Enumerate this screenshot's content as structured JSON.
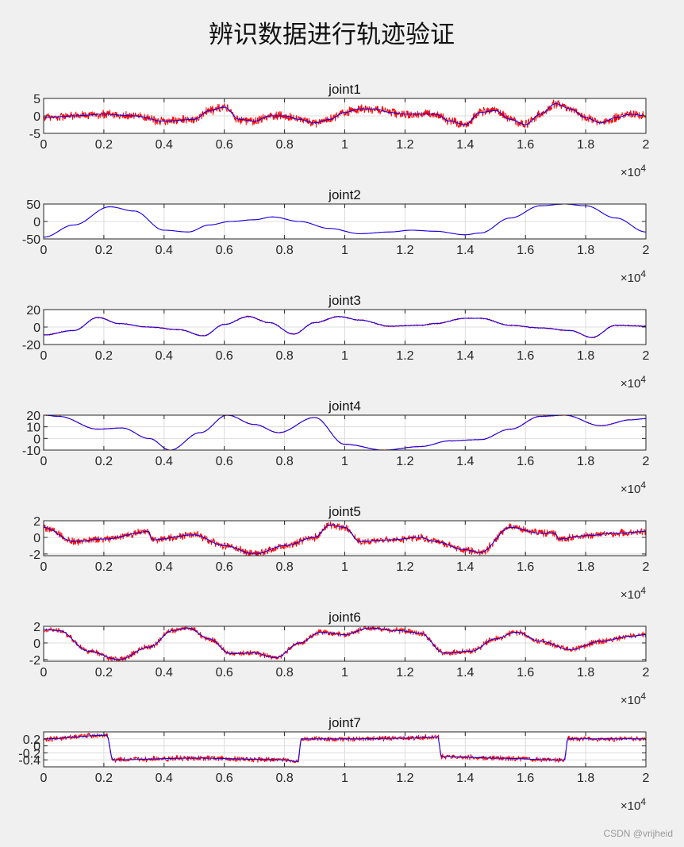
{
  "figure": {
    "title": "辨识数据进行轨迹验证",
    "watermark": "CSDN @vrijheid",
    "background": "#f0f0f0"
  },
  "chart_data": [
    {
      "type": "line",
      "title": "joint1",
      "xlim": [
        0,
        20000
      ],
      "ylim": [
        -5,
        5
      ],
      "xticks": [
        "0",
        "0.2",
        "0.4",
        "0.6",
        "0.8",
        "1",
        "1.2",
        "1.4",
        "1.6",
        "1.8",
        "2"
      ],
      "yticks": [
        "-5",
        "0",
        "5"
      ],
      "ytick_values": [
        -5,
        0,
        5
      ],
      "x_exponent": "×10^4",
      "grid": true,
      "series": [
        {
          "color": "#ff0000",
          "style": "noisy measurement",
          "noise": 2.0,
          "x": [
            0,
            1000,
            2000,
            3000,
            4000,
            5000,
            5500,
            6000,
            6500,
            7000,
            7500,
            8000,
            8500,
            9000,
            9500,
            10000,
            10500,
            11000,
            11500,
            12000,
            12500,
            13000,
            13500,
            14000,
            14500,
            15000,
            15500,
            16000,
            16500,
            17000,
            17500,
            18000,
            18500,
            19000,
            19500,
            20000
          ],
          "y": [
            -0.5,
            0,
            0.5,
            0,
            -1.5,
            -1,
            1.5,
            2.5,
            -1,
            -1.5,
            0,
            0,
            -1,
            -2,
            -1,
            1,
            2,
            2,
            1,
            0.5,
            0.5,
            0.5,
            -1.5,
            -2.5,
            1,
            1.5,
            -1,
            -2.5,
            0.5,
            3.5,
            2,
            -0.5,
            -2,
            -0.5,
            0.5,
            0
          ]
        },
        {
          "color": "#0000ff",
          "style": "line",
          "x": [
            0,
            1000,
            2000,
            3000,
            4000,
            5000,
            5500,
            6000,
            6500,
            7000,
            7500,
            8000,
            8500,
            9000,
            9500,
            10000,
            10500,
            11000,
            11500,
            12000,
            12500,
            13000,
            13500,
            14000,
            14500,
            15000,
            15500,
            16000,
            16500,
            17000,
            17500,
            18000,
            18500,
            19000,
            19500,
            20000
          ],
          "y": [
            -0.5,
            0,
            0.5,
            0,
            -1.5,
            -1,
            1.5,
            2.5,
            -1,
            -1.5,
            0,
            0,
            -1,
            -2,
            -1,
            1,
            2,
            2,
            1,
            0.5,
            0.5,
            0.5,
            -1.5,
            -2.5,
            1,
            1.5,
            -1,
            -2.5,
            0.5,
            3.5,
            2,
            -0.5,
            -2,
            -0.5,
            0.5,
            0
          ]
        }
      ]
    },
    {
      "type": "line",
      "title": "joint2",
      "xlim": [
        0,
        20000
      ],
      "ylim": [
        -50,
        50
      ],
      "xticks": [
        "0",
        "0.2",
        "0.4",
        "0.6",
        "0.8",
        "1",
        "1.2",
        "1.4",
        "1.6",
        "1.8",
        "2"
      ],
      "yticks": [
        "-50",
        "0",
        "50"
      ],
      "ytick_values": [
        -50,
        0,
        50
      ],
      "x_exponent": "×10^4",
      "grid": true,
      "series": [
        {
          "color": "#ff0000",
          "style": "noisy measurement",
          "noise": 0.6,
          "x": [
            0,
            1000,
            2200,
            3000,
            4000,
            4800,
            5500,
            6200,
            7000,
            7600,
            8500,
            9500,
            10500,
            11500,
            12200,
            13000,
            14000,
            14500,
            15500,
            16500,
            17300,
            18000,
            19000,
            20000
          ],
          "y": [
            -45,
            -10,
            42,
            30,
            -25,
            -30,
            -10,
            0,
            5,
            13,
            0,
            -20,
            -35,
            -30,
            -25,
            -28,
            -38,
            -33,
            10,
            45,
            50,
            45,
            10,
            -30
          ]
        },
        {
          "color": "#0000ff",
          "style": "line",
          "x": [
            0,
            1000,
            2200,
            3000,
            4000,
            4800,
            5500,
            6200,
            7000,
            7600,
            8500,
            9500,
            10500,
            11500,
            12200,
            13000,
            14000,
            14500,
            15500,
            16500,
            17300,
            18000,
            19000,
            20000
          ],
          "y": [
            -45,
            -10,
            42,
            30,
            -25,
            -30,
            -10,
            0,
            5,
            13,
            0,
            -20,
            -35,
            -30,
            -25,
            -28,
            -38,
            -33,
            10,
            45,
            50,
            45,
            10,
            -30
          ]
        }
      ]
    },
    {
      "type": "line",
      "title": "joint3",
      "xlim": [
        0,
        20000
      ],
      "ylim": [
        -20,
        20
      ],
      "xticks": [
        "0",
        "0.2",
        "0.4",
        "0.6",
        "0.8",
        "1",
        "1.2",
        "1.4",
        "1.6",
        "1.8",
        "2"
      ],
      "yticks": [
        "-20",
        "0",
        "20"
      ],
      "ytick_values": [
        -20,
        0,
        20
      ],
      "x_exponent": "×10^4",
      "grid": true,
      "series": [
        {
          "color": "#ff0000",
          "style": "noisy measurement",
          "noise": 1.2,
          "x": [
            0,
            1000,
            1800,
            2500,
            3500,
            4500,
            5300,
            6000,
            6800,
            7500,
            8300,
            9000,
            9800,
            10500,
            11500,
            12500,
            13000,
            14000,
            14500,
            15500,
            16500,
            17500,
            18200,
            19000,
            20000
          ],
          "y": [
            -9,
            -4,
            11,
            4,
            0,
            -3,
            -10,
            3,
            12,
            5,
            -8,
            5,
            12,
            8,
            1,
            2,
            4,
            10,
            10,
            2,
            -1,
            -4,
            -12,
            2,
            1
          ]
        },
        {
          "color": "#0000ff",
          "style": "line",
          "x": [
            0,
            1000,
            1800,
            2500,
            3500,
            4500,
            5300,
            6000,
            6800,
            7500,
            8300,
            9000,
            9800,
            10500,
            11500,
            12500,
            13000,
            14000,
            14500,
            15500,
            16500,
            17500,
            18200,
            19000,
            20000
          ],
          "y": [
            -9,
            -4,
            11,
            4,
            0,
            -3,
            -10,
            3,
            12,
            5,
            -8,
            5,
            12,
            8,
            1,
            2,
            4,
            10,
            10,
            2,
            -1,
            -4,
            -12,
            2,
            1
          ]
        }
      ]
    },
    {
      "type": "line",
      "title": "joint4",
      "xlim": [
        0,
        20000
      ],
      "ylim": [
        -10,
        20
      ],
      "xticks": [
        "0",
        "0.2",
        "0.4",
        "0.6",
        "0.8",
        "1",
        "1.2",
        "1.4",
        "1.6",
        "1.8",
        "2"
      ],
      "yticks": [
        "-10",
        "0",
        "10",
        "20"
      ],
      "ytick_values": [
        -10,
        0,
        10,
        20
      ],
      "x_exponent": "×10^4",
      "grid": true,
      "series": [
        {
          "color": "#ff0000",
          "style": "noisy measurement",
          "noise": 0.6,
          "x": [
            0,
            500,
            1800,
            2600,
            3500,
            4200,
            5200,
            6100,
            7000,
            7800,
            9000,
            10000,
            11300,
            12500,
            13500,
            14500,
            15500,
            16500,
            17300,
            18500,
            19500,
            20000
          ],
          "y": [
            20,
            19,
            8,
            9,
            0,
            -10,
            5,
            20,
            12,
            5,
            18,
            -5,
            -10,
            -7,
            -2,
            -1,
            8,
            19,
            20,
            11,
            16,
            17
          ]
        },
        {
          "color": "#0000ff",
          "style": "line",
          "x": [
            0,
            500,
            1800,
            2600,
            3500,
            4200,
            5200,
            6100,
            7000,
            7800,
            9000,
            10000,
            11300,
            12500,
            13500,
            14500,
            15500,
            16500,
            17300,
            18500,
            19500,
            20000
          ],
          "y": [
            20,
            19,
            8,
            9,
            0,
            -10,
            5,
            20,
            12,
            5,
            18,
            -5,
            -10,
            -7,
            -2,
            -1,
            8,
            19,
            20,
            11,
            16,
            17
          ]
        }
      ]
    },
    {
      "type": "line",
      "title": "joint5",
      "xlim": [
        0,
        20000
      ],
      "ylim": [
        -2.2,
        2
      ],
      "xticks": [
        "0",
        "0.2",
        "0.4",
        "0.6",
        "0.8",
        "1",
        "1.2",
        "1.4",
        "1.6",
        "1.8",
        "2"
      ],
      "yticks": [
        "-2",
        "0",
        "2"
      ],
      "ytick_values": [
        -2,
        0,
        2
      ],
      "x_exponent": "×10^4",
      "grid": true,
      "series": [
        {
          "color": "#ff0000",
          "style": "noisy measurement",
          "noise": 0.7,
          "x": [
            0,
            1000,
            2000,
            3500,
            3600,
            5000,
            6000,
            7000,
            8000,
            9000,
            9500,
            10000,
            10500,
            11500,
            12500,
            13000,
            14000,
            14500,
            15500,
            16500,
            17000,
            17100,
            18000,
            19000,
            20000
          ],
          "y": [
            1.2,
            -0.5,
            -0.2,
            0.7,
            -0.3,
            0.3,
            -1,
            -2,
            -1,
            0,
            1.5,
            1.2,
            -0.5,
            -0.3,
            0,
            -0.5,
            -1.5,
            -1.8,
            1.2,
            0.5,
            0.5,
            -0.2,
            0.2,
            0.5,
            0.7
          ]
        },
        {
          "color": "#0000ff",
          "style": "line",
          "x": [
            0,
            1000,
            2000,
            3500,
            3600,
            5000,
            6000,
            7000,
            8000,
            9000,
            9500,
            10000,
            10500,
            11500,
            12500,
            13000,
            14000,
            14500,
            15500,
            16500,
            17000,
            17100,
            18000,
            19000,
            20000
          ],
          "y": [
            1.2,
            -0.5,
            -0.2,
            0.7,
            -0.3,
            0.3,
            -1,
            -2,
            -1,
            0,
            1.5,
            1.2,
            -0.5,
            -0.3,
            0,
            -0.5,
            -1.5,
            -1.8,
            1.2,
            0.5,
            0.5,
            -0.2,
            0.2,
            0.5,
            0.7
          ]
        }
      ]
    },
    {
      "type": "line",
      "title": "joint6",
      "xlim": [
        0,
        20000
      ],
      "ylim": [
        -2.2,
        2
      ],
      "xticks": [
        "0",
        "0.2",
        "0.4",
        "0.6",
        "0.8",
        "1",
        "1.2",
        "1.4",
        "1.6",
        "1.8",
        "2"
      ],
      "yticks": [
        "-2",
        "0",
        "2"
      ],
      "ytick_values": [
        -2,
        0,
        2
      ],
      "x_exponent": "×10^4",
      "grid": true,
      "series": [
        {
          "color": "#ff0000",
          "style": "noisy measurement",
          "noise": 0.55,
          "x": [
            0,
            500,
            1500,
            2500,
            3500,
            4300,
            4800,
            5500,
            6200,
            7000,
            7700,
            8500,
            9200,
            10000,
            10800,
            11700,
            12500,
            13300,
            14200,
            15000,
            15700,
            16500,
            17500,
            18500,
            19500,
            20000
          ],
          "y": [
            1.6,
            1.5,
            -1,
            -2,
            -0.5,
            1.5,
            1.8,
            0.5,
            -1.3,
            -1.2,
            -1.8,
            0,
            1.3,
            1,
            1.8,
            1.5,
            1.2,
            -1.2,
            -1,
            0.5,
            1.3,
            0.2,
            -0.8,
            0.2,
            0.8,
            1
          ]
        },
        {
          "color": "#0000ff",
          "style": "line",
          "x": [
            0,
            500,
            1500,
            2500,
            3500,
            4300,
            4800,
            5500,
            6200,
            7000,
            7700,
            8500,
            9200,
            10000,
            10800,
            11700,
            12500,
            13300,
            14200,
            15000,
            15700,
            16500,
            17500,
            18500,
            19500,
            20000
          ],
          "y": [
            1.6,
            1.5,
            -1,
            -2,
            -0.5,
            1.5,
            1.8,
            0.5,
            -1.3,
            -1.2,
            -1.8,
            0,
            1.3,
            1,
            1.8,
            1.5,
            1.2,
            -1.2,
            -1,
            0.5,
            1.3,
            0.2,
            -0.8,
            0.2,
            0.8,
            1
          ]
        }
      ]
    },
    {
      "type": "line",
      "title": "joint7",
      "xlim": [
        0,
        20000
      ],
      "ylim": [
        -0.6,
        0.4
      ],
      "xticks": [
        "0",
        "0.2",
        "0.4",
        "0.6",
        "0.8",
        "1",
        "1.2",
        "1.4",
        "1.6",
        "1.8",
        "2"
      ],
      "yticks": [
        "-0.4",
        "-0.2",
        "0",
        "0.2"
      ],
      "ytick_values": [
        -0.4,
        -0.2,
        0,
        0.2
      ],
      "x_exponent": "×10^4",
      "grid": true,
      "series": [
        {
          "color": "#ff0000",
          "style": "noisy measurement",
          "noise": 0.12,
          "x": [
            0,
            2000,
            2100,
            2300,
            5000,
            8000,
            8450,
            8550,
            10000,
            12000,
            13100,
            13200,
            15000,
            17000,
            17300,
            17400,
            18500,
            20000
          ],
          "y": [
            0.2,
            0.3,
            0.3,
            -0.4,
            -0.35,
            -0.4,
            -0.45,
            0.2,
            0.2,
            0.22,
            0.25,
            -0.3,
            -0.35,
            -0.4,
            -0.4,
            0.2,
            0.2,
            0.2
          ]
        },
        {
          "color": "#0000ff",
          "style": "line",
          "x": [
            0,
            2000,
            2100,
            2300,
            5000,
            8000,
            8450,
            8550,
            10000,
            12000,
            13100,
            13200,
            15000,
            17000,
            17300,
            17400,
            18500,
            20000
          ],
          "y": [
            0.2,
            0.3,
            0.3,
            -0.4,
            -0.35,
            -0.4,
            -0.45,
            0.2,
            0.2,
            0.22,
            0.25,
            -0.3,
            -0.35,
            -0.4,
            -0.4,
            0.2,
            0.2,
            0.2
          ]
        }
      ]
    }
  ]
}
